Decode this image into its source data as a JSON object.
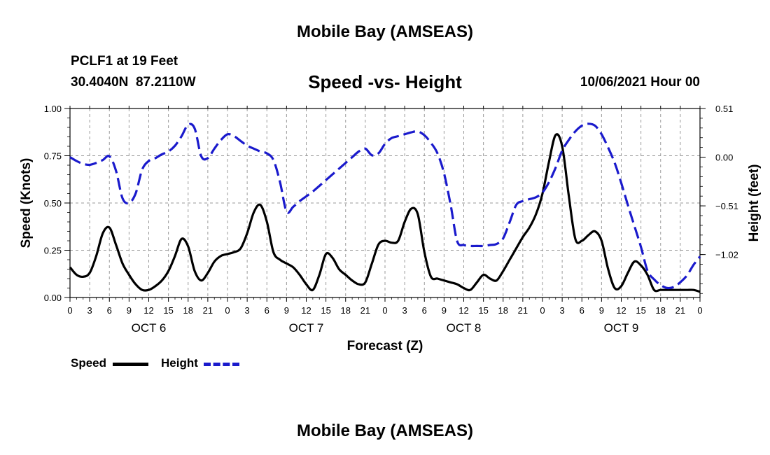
{
  "header": {
    "title_top": "Mobile Bay (AMSEAS)",
    "title_bottom": "Mobile Bay (AMSEAS)",
    "station": "PCLF1 at 19 Feet",
    "coords": "30.4040N  87.2110W",
    "datetime": "10/06/2021 Hour 00"
  },
  "colors": {
    "speed": "#000000",
    "height": "#1a1acc",
    "grid": "#9a9a9a"
  },
  "chart_data": {
    "type": "line",
    "title": "Speed -vs- Height",
    "xlabel": "Forecast (Z)",
    "ylabel_left": "Speed (Knots)",
    "ylabel_right": "Height (feet)",
    "x_unit": "forecast hours from 10/06/2021 00Z",
    "x_range": [
      0,
      96
    ],
    "x_ticks": [
      0,
      3,
      6,
      9,
      12,
      15,
      18,
      21,
      24,
      27,
      30,
      33,
      36,
      39,
      42,
      45,
      48,
      51,
      54,
      57,
      60,
      63,
      66,
      69,
      72,
      75,
      78,
      81,
      84,
      87,
      90,
      93,
      96
    ],
    "x_tick_labels": [
      "0",
      "3",
      "6",
      "9",
      "12",
      "15",
      "18",
      "21",
      "0",
      "3",
      "6",
      "9",
      "12",
      "15",
      "18",
      "21",
      "0",
      "3",
      "6",
      "9",
      "12",
      "15",
      "18",
      "21",
      "0",
      "3",
      "6",
      "9",
      "12",
      "15",
      "18",
      "21",
      "0"
    ],
    "day_labels": [
      {
        "label": "OCT 6",
        "hour": 12
      },
      {
        "label": "OCT 7",
        "hour": 36
      },
      {
        "label": "OCT 8",
        "hour": 60
      },
      {
        "label": "OCT 9",
        "hour": 84
      }
    ],
    "ylim_left": [
      0,
      1.0
    ],
    "yticks_left": [
      {
        "value": 0.0,
        "label": "0.00"
      },
      {
        "value": 0.25,
        "label": "0.25"
      },
      {
        "value": 0.5,
        "label": "0.50"
      },
      {
        "value": 0.75,
        "label": "0.75"
      },
      {
        "value": 1.0,
        "label": "1.00"
      }
    ],
    "ylim_right": [
      -1.47,
      0.51
    ],
    "yticks_right": [
      {
        "value": 0.51,
        "label": "0.51"
      },
      {
        "value": 0.0,
        "label": "0.00"
      },
      {
        "value": -0.51,
        "label": "−0.51"
      },
      {
        "value": -1.02,
        "label": "−1.02"
      }
    ],
    "series": [
      {
        "name": "Speed",
        "axis": "left",
        "style": "solid",
        "x": [
          0,
          1,
          2,
          3,
          4,
          5,
          6,
          7,
          8,
          9,
          10,
          11,
          12,
          13,
          14,
          15,
          16,
          17,
          18,
          19,
          20,
          21,
          22,
          23,
          24,
          25,
          26,
          27,
          28,
          29,
          30,
          31,
          32,
          33,
          34,
          35,
          36,
          37,
          38,
          39,
          40,
          41,
          42,
          43,
          44,
          45,
          46,
          47,
          48,
          49,
          50,
          51,
          52,
          53,
          54,
          55,
          56,
          57,
          58,
          59,
          60,
          61,
          62,
          63,
          64,
          65,
          66,
          67,
          68,
          69,
          70,
          71,
          72,
          73,
          74,
          75,
          76,
          77,
          78,
          79,
          80,
          81,
          82,
          83,
          84,
          85,
          86,
          87,
          88,
          89,
          90,
          91,
          92,
          93,
          94,
          95,
          96
        ],
        "values": [
          0.16,
          0.12,
          0.11,
          0.13,
          0.22,
          0.34,
          0.37,
          0.28,
          0.18,
          0.12,
          0.07,
          0.04,
          0.04,
          0.06,
          0.09,
          0.14,
          0.22,
          0.31,
          0.27,
          0.14,
          0.09,
          0.13,
          0.19,
          0.22,
          0.23,
          0.24,
          0.26,
          0.34,
          0.45,
          0.49,
          0.4,
          0.24,
          0.2,
          0.18,
          0.16,
          0.12,
          0.07,
          0.04,
          0.12,
          0.23,
          0.21,
          0.15,
          0.12,
          0.09,
          0.07,
          0.08,
          0.18,
          0.28,
          0.3,
          0.29,
          0.3,
          0.4,
          0.47,
          0.44,
          0.24,
          0.11,
          0.1,
          0.09,
          0.08,
          0.07,
          0.05,
          0.04,
          0.08,
          0.12,
          0.1,
          0.09,
          0.14,
          0.2,
          0.26,
          0.32,
          0.37,
          0.44,
          0.55,
          0.72,
          0.86,
          0.8,
          0.54,
          0.31,
          0.3,
          0.33,
          0.35,
          0.3,
          0.15,
          0.05,
          0.06,
          0.13,
          0.19,
          0.17,
          0.12,
          0.04,
          0.04,
          0.04,
          0.04,
          0.04,
          0.04,
          0.04,
          0.03
        ]
      },
      {
        "name": "Height",
        "axis": "right",
        "style": "dashed",
        "x": [
          0,
          1,
          2,
          3,
          4,
          5,
          6,
          7,
          8,
          9,
          10,
          11,
          12,
          13,
          14,
          15,
          16,
          17,
          18,
          19,
          20,
          21,
          22,
          23,
          24,
          25,
          26,
          27,
          28,
          29,
          30,
          31,
          32,
          33,
          34,
          35,
          36,
          37,
          38,
          39,
          40,
          41,
          42,
          43,
          44,
          45,
          46,
          47,
          48,
          49,
          50,
          51,
          52,
          53,
          54,
          55,
          56,
          57,
          58,
          59,
          60,
          61,
          62,
          63,
          64,
          65,
          66,
          67,
          68,
          69,
          70,
          71,
          72,
          73,
          74,
          75,
          76,
          77,
          78,
          79,
          80,
          81,
          82,
          83,
          84,
          85,
          86,
          87,
          88,
          89,
          90,
          91,
          92,
          93,
          94,
          95,
          96
        ],
        "values": [
          0.0,
          -0.04,
          -0.07,
          -0.08,
          -0.06,
          -0.03,
          0.01,
          -0.14,
          -0.43,
          -0.48,
          -0.38,
          -0.13,
          -0.04,
          -0.01,
          0.03,
          0.06,
          0.12,
          0.22,
          0.34,
          0.3,
          0.01,
          -0.01,
          0.09,
          0.18,
          0.24,
          0.22,
          0.17,
          0.12,
          0.09,
          0.06,
          0.04,
          -0.03,
          -0.26,
          -0.57,
          -0.52,
          -0.46,
          -0.41,
          -0.36,
          -0.3,
          -0.24,
          -0.18,
          -0.12,
          -0.06,
          0.0,
          0.06,
          0.09,
          0.02,
          0.04,
          0.14,
          0.2,
          0.22,
          0.24,
          0.26,
          0.27,
          0.23,
          0.15,
          0.04,
          -0.17,
          -0.5,
          -0.88,
          -0.92,
          -0.93,
          -0.93,
          -0.93,
          -0.92,
          -0.91,
          -0.85,
          -0.68,
          -0.5,
          -0.46,
          -0.44,
          -0.42,
          -0.37,
          -0.26,
          -0.11,
          0.07,
          0.18,
          0.27,
          0.33,
          0.35,
          0.33,
          0.24,
          0.1,
          -0.06,
          -0.27,
          -0.5,
          -0.72,
          -0.94,
          -1.19,
          -1.28,
          -1.34,
          -1.37,
          -1.36,
          -1.31,
          -1.24,
          -1.13,
          -1.04
        ]
      }
    ],
    "legend": [
      {
        "label": "Speed",
        "style": "solid"
      },
      {
        "label": "Height",
        "style": "dashed"
      }
    ],
    "legend_position": "bottom-left",
    "grid": true
  }
}
